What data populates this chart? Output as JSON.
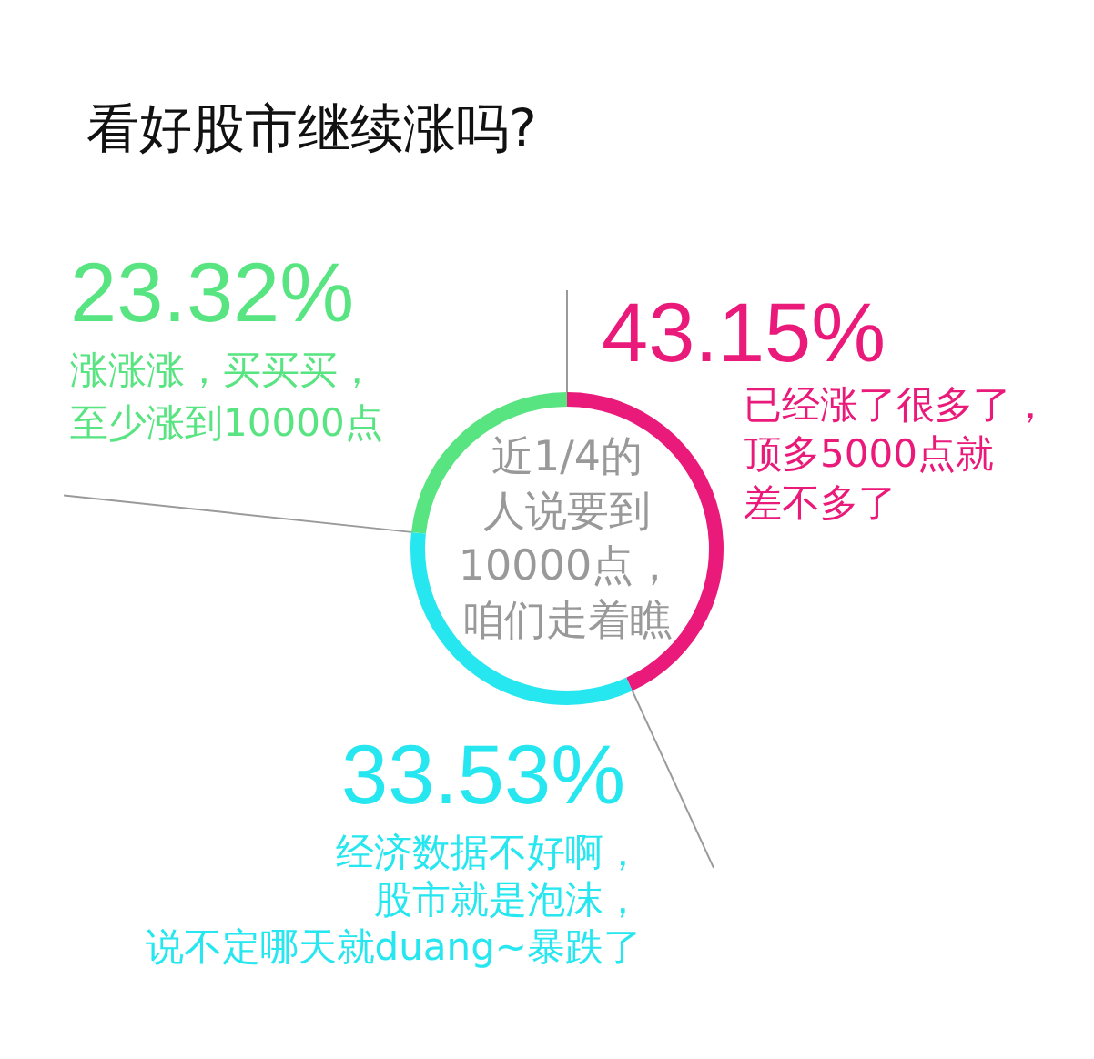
{
  "chart_data": {
    "type": "donut",
    "title": "看好股市继续涨吗?",
    "categories": [
      "已经涨了很多了，顶多5000点就差不多了",
      "经济数据不好啊，股市就是泡沫，说不定哪天就duang~暴跌了",
      "涨涨涨，买买买，至少涨到10000点"
    ],
    "values": [
      43.15,
      33.53,
      23.32
    ],
    "colors": [
      "#ea1a7b",
      "#26e6ef",
      "#58e480"
    ],
    "value_labels": [
      "43.15%",
      "33.53%",
      "23.32%"
    ],
    "annotations": [
      "近1/4的人说要到10000点，咱们走着瞧"
    ]
  }
}
